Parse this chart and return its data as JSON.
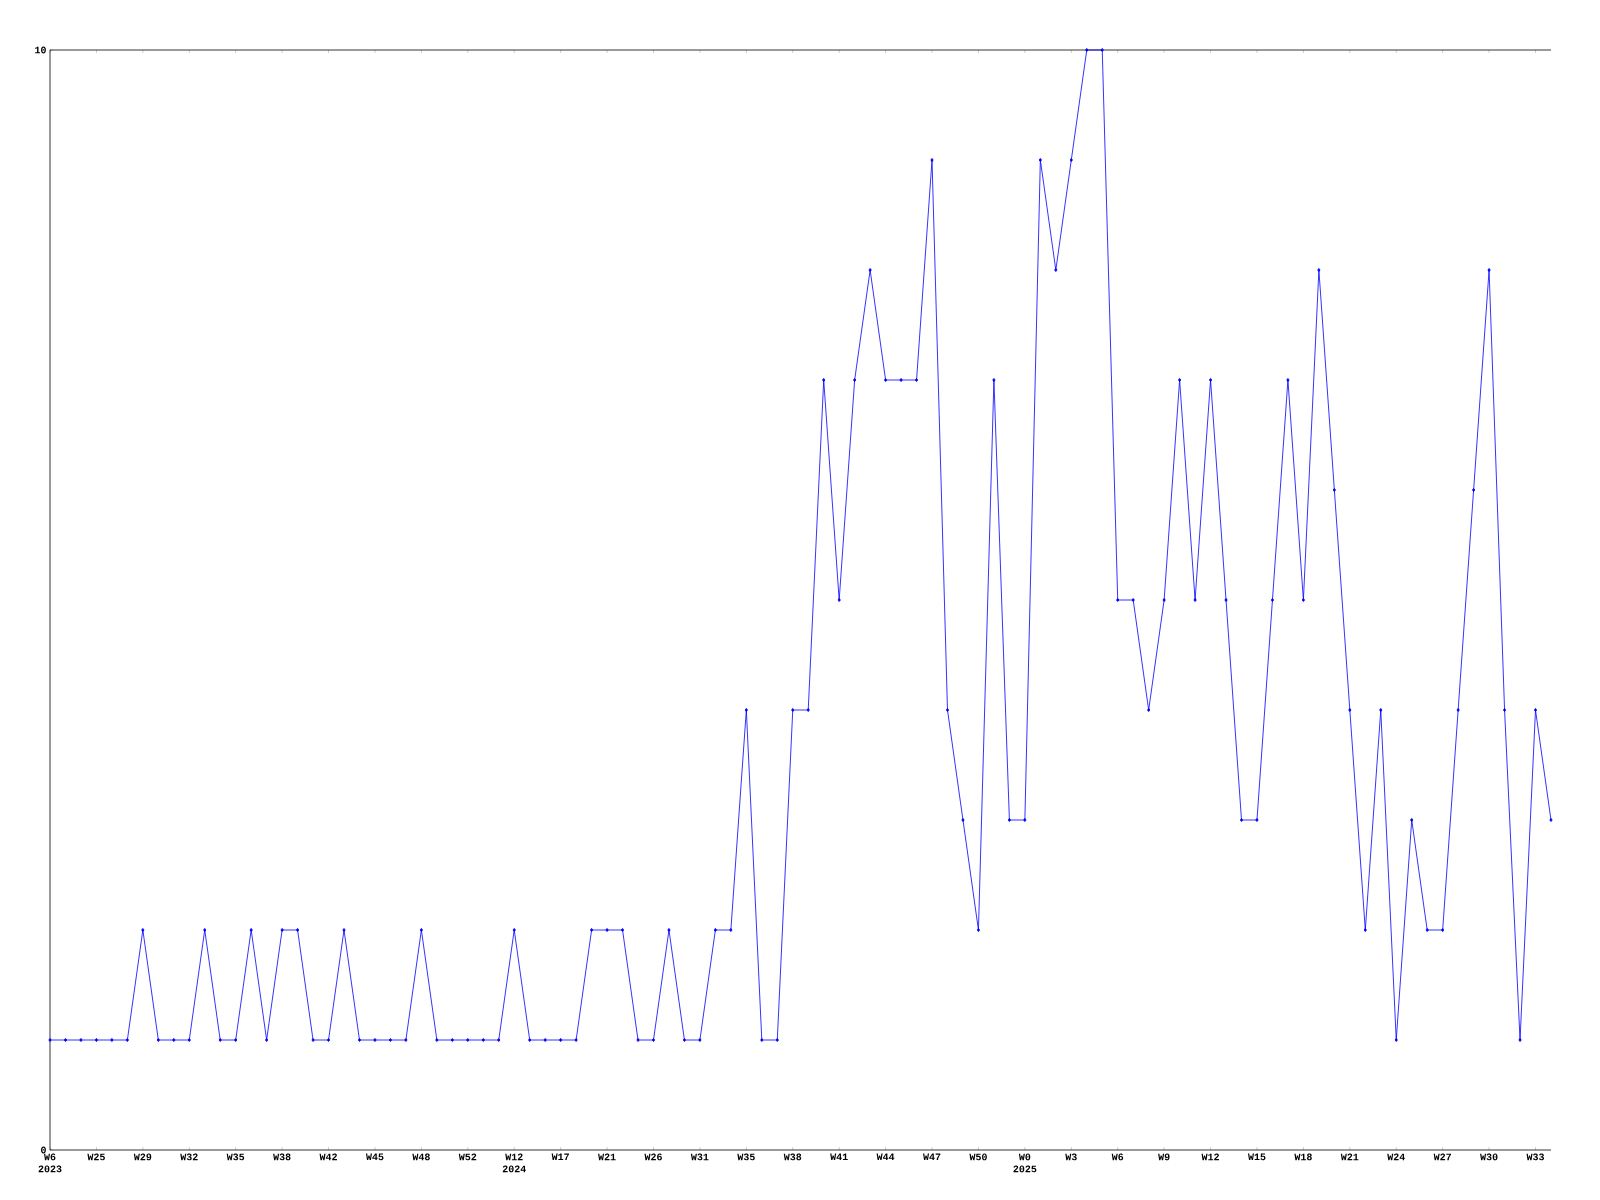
{
  "chart_data": {
    "type": "line",
    "categories": [
      "W6",
      null,
      null,
      "W25",
      null,
      null,
      "W29",
      null,
      null,
      "W32",
      null,
      null,
      "W35",
      null,
      null,
      "W38",
      null,
      null,
      "W42",
      null,
      null,
      "W45",
      null,
      null,
      "W48",
      null,
      null,
      "W52",
      null,
      null,
      "W12",
      null,
      null,
      "W17",
      null,
      null,
      "W21",
      null,
      null,
      "W26",
      null,
      null,
      "W31",
      null,
      null,
      "W35",
      null,
      null,
      "W38",
      null,
      null,
      "W41",
      null,
      null,
      "W44",
      null,
      null,
      "W47",
      null,
      null,
      "W50",
      null,
      null,
      "W0",
      null,
      null,
      "W3",
      null,
      null,
      "W6",
      null,
      null,
      "W9",
      null,
      null,
      "W12",
      null,
      null,
      "W15",
      null,
      null,
      "W18",
      null,
      null,
      "W21",
      null,
      null,
      "W24",
      null,
      null,
      "W27",
      null,
      null,
      "W30",
      null,
      null,
      "W33",
      null
    ],
    "values": [
      1,
      1,
      1,
      1,
      1,
      1,
      2,
      1,
      1,
      1,
      2,
      1,
      1,
      2,
      1,
      2,
      2,
      1,
      1,
      2,
      1,
      1,
      1,
      1,
      2,
      1,
      1,
      1,
      1,
      1,
      2,
      1,
      1,
      1,
      1,
      2,
      2,
      2,
      1,
      1,
      2,
      1,
      1,
      2,
      2,
      4,
      1,
      1,
      4,
      4,
      7,
      5,
      7,
      8,
      7,
      7,
      7,
      9,
      4,
      3,
      2,
      7,
      3,
      3,
      9,
      8,
      9,
      10,
      10,
      5,
      5,
      4,
      5,
      7,
      5,
      7,
      5,
      3,
      3,
      5,
      7,
      5,
      8,
      6,
      4,
      2,
      4,
      1,
      3,
      2,
      2,
      4,
      6,
      8,
      4,
      1,
      4,
      3
    ],
    "color": "#0000ff",
    "marker": "diamond",
    "ylim": [
      0,
      10
    ],
    "yticks": [
      0,
      10
    ],
    "annotations": [
      "2023",
      "2024",
      "2025"
    ]
  }
}
